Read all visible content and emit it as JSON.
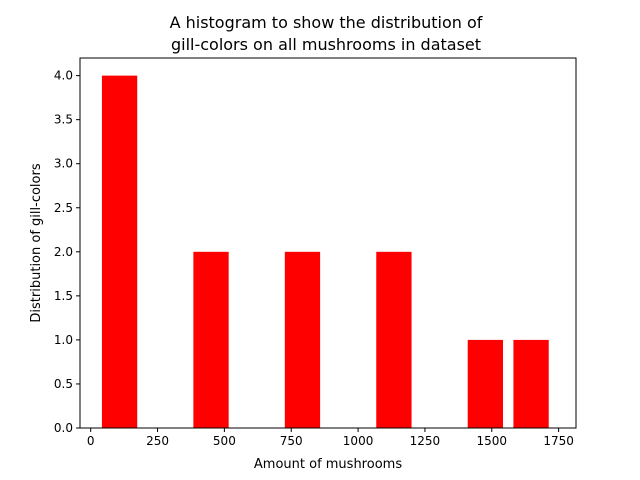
{
  "chart_data": {
    "type": "bar",
    "title_lines": [
      "A histogram to show the distribution of",
      "gill-colors on all mushrooms in dataset"
    ],
    "xlabel": "Amount of mushrooms",
    "ylabel": "Distribution of gill-colors",
    "xlim": [
      -40,
      1815
    ],
    "ylim": [
      0,
      4.2
    ],
    "xticks": [
      0,
      250,
      500,
      750,
      1000,
      1250,
      1500,
      1750
    ],
    "xtick_labels": [
      "0",
      "250",
      "500",
      "750",
      "1000",
      "1250",
      "1500",
      "1750"
    ],
    "yticks": [
      0,
      0.5,
      1,
      1.5,
      2,
      2.5,
      3,
      3.5,
      4
    ],
    "ytick_labels": [
      "0.0",
      "0.5",
      "1.0",
      "1.5",
      "2.0",
      "2.5",
      "3.0",
      "3.5",
      "4.0"
    ],
    "bars": [
      {
        "x0": 42,
        "x1": 174,
        "value": 4
      },
      {
        "x0": 384,
        "x1": 516,
        "value": 2
      },
      {
        "x0": 726,
        "x1": 858,
        "value": 2
      },
      {
        "x0": 1068,
        "x1": 1200,
        "value": 2
      },
      {
        "x0": 1410,
        "x1": 1542,
        "value": 1
      },
      {
        "x0": 1581,
        "x1": 1713,
        "value": 1
      }
    ],
    "bar_color": "#ff0000",
    "grid": false,
    "legend": "none"
  }
}
